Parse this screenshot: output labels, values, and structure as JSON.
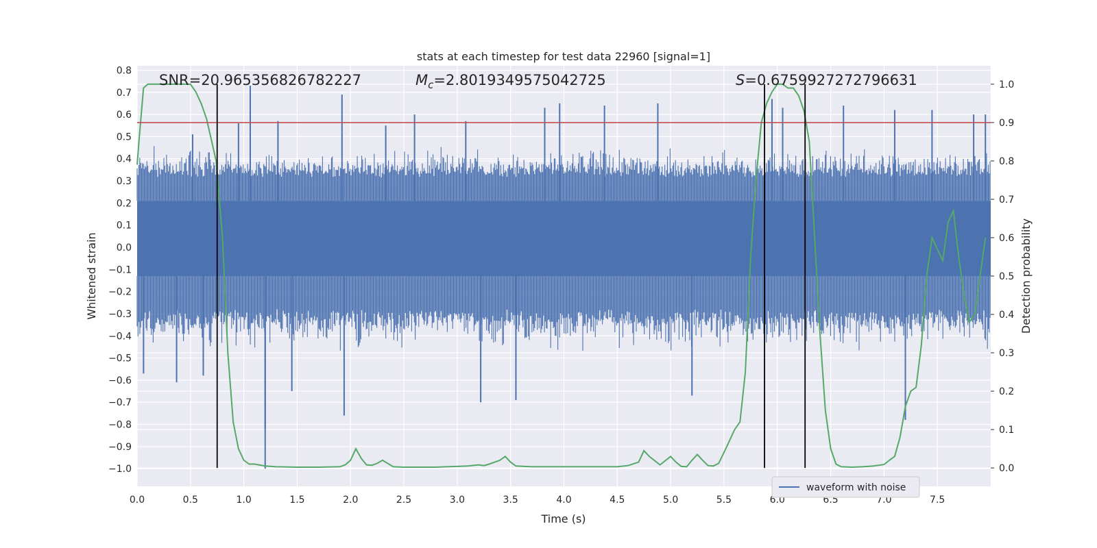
{
  "chart_data": {
    "type": "line",
    "title": "stats at each timestep for test data 22960 [signal=1]",
    "xlabel": "Time (s)",
    "ylabel": "Whitened strain",
    "y2label": "Detection probability",
    "xlim": [
      0.0,
      8.0
    ],
    "ylim": [
      -1.08,
      0.82
    ],
    "y2lim": [
      -0.048,
      1.048
    ],
    "xticks": [
      0.0,
      0.5,
      1.0,
      1.5,
      2.0,
      2.5,
      3.0,
      3.5,
      4.0,
      4.5,
      5.0,
      5.5,
      6.0,
      6.5,
      7.0,
      7.5
    ],
    "xtick_labels": [
      "0.0",
      "0.5",
      "1.0",
      "1.5",
      "2.0",
      "2.5",
      "3.0",
      "3.5",
      "4.0",
      "4.5",
      "5.0",
      "5.5",
      "6.0",
      "6.5",
      "7.0",
      "7.5"
    ],
    "yticks": [
      0.8,
      0.7,
      0.6,
      0.5,
      0.4,
      0.3,
      0.2,
      0.1,
      0.0,
      -0.1,
      -0.2,
      -0.3,
      -0.4,
      -0.5,
      -0.6,
      -0.7,
      -0.8,
      -0.9,
      -1.0
    ],
    "ytick_labels": [
      "0.8",
      "0.7",
      "0.6",
      "0.5",
      "0.4",
      "0.3",
      "0.2",
      "0.1",
      "0.0",
      "−0.1",
      "−0.2",
      "−0.3",
      "−0.4",
      "−0.5",
      "−0.6",
      "−0.7",
      "−0.8",
      "−0.9",
      "−1.0"
    ],
    "y2ticks": [
      1.0,
      0.9,
      0.8,
      0.7,
      0.6,
      0.5,
      0.4,
      0.3,
      0.2,
      0.1,
      0.0
    ],
    "y2tick_labels": [
      "1.0",
      "0.9",
      "0.8",
      "0.7",
      "0.6",
      "0.5",
      "0.4",
      "0.3",
      "0.2",
      "0.1",
      "0.0"
    ],
    "threshold": {
      "axis": "right",
      "value": 0.9,
      "color": "#c44e52"
    },
    "vertical_lines": [
      0.75,
      5.88,
      6.26
    ],
    "annotations": {
      "snr": "SNR=20.965356826782227",
      "mc_symbol": "M",
      "mc_sub": "c",
      "mc_value": "=2.8019349575042725",
      "s_symbol": "S",
      "s_value": "=0.6759927272796631"
    },
    "series": [
      {
        "name": "waveform with noise",
        "axis": "left",
        "color": "#4c72b0",
        "dense_band": [
          -0.13,
          0.21
        ],
        "upper_envelope_typical": 0.4,
        "lower_envelope_typical": -0.4,
        "spikes": [
          [
            0.06,
            -0.57
          ],
          [
            0.37,
            -0.61
          ],
          [
            0.52,
            0.51
          ],
          [
            0.62,
            -0.58
          ],
          [
            0.95,
            0.56
          ],
          [
            1.06,
            0.73
          ],
          [
            1.2,
            -1.0
          ],
          [
            1.2,
            -0.82
          ],
          [
            1.32,
            0.57
          ],
          [
            1.45,
            -0.65
          ],
          [
            1.92,
            0.69
          ],
          [
            1.94,
            -0.76
          ],
          [
            2.33,
            0.55
          ],
          [
            2.6,
            0.6
          ],
          [
            3.08,
            0.57
          ],
          [
            3.22,
            -0.7
          ],
          [
            3.55,
            -0.69
          ],
          [
            3.82,
            0.63
          ],
          [
            3.96,
            0.65
          ],
          [
            4.38,
            0.64
          ],
          [
            4.88,
            0.65
          ],
          [
            5.2,
            -0.67
          ],
          [
            5.95,
            0.67
          ],
          [
            6.05,
            0.63
          ],
          [
            6.62,
            0.64
          ],
          [
            7.1,
            0.62
          ],
          [
            7.2,
            -0.78
          ],
          [
            7.45,
            0.62
          ],
          [
            7.84,
            0.6
          ],
          [
            7.95,
            0.6
          ]
        ]
      },
      {
        "name": "Detection probability",
        "axis": "right",
        "color": "#55a868",
        "x": [
          0.0,
          0.02,
          0.06,
          0.1,
          0.2,
          0.3,
          0.4,
          0.5,
          0.55,
          0.6,
          0.65,
          0.7,
          0.74,
          0.8,
          0.85,
          0.9,
          0.95,
          1.0,
          1.05,
          1.1,
          1.2,
          1.3,
          1.5,
          1.7,
          1.9,
          1.95,
          2.0,
          2.05,
          2.1,
          2.15,
          2.2,
          2.25,
          2.3,
          2.4,
          2.5,
          2.6,
          2.8,
          2.9,
          3.0,
          3.1,
          3.2,
          3.25,
          3.3,
          3.4,
          3.45,
          3.5,
          3.55,
          3.7,
          4.0,
          4.2,
          4.5,
          4.6,
          4.7,
          4.75,
          4.8,
          4.9,
          5.0,
          5.05,
          5.1,
          5.15,
          5.2,
          5.25,
          5.3,
          5.35,
          5.4,
          5.45,
          5.5,
          5.55,
          5.6,
          5.65,
          5.7,
          5.75,
          5.8,
          5.85,
          5.9,
          5.95,
          6.0,
          6.05,
          6.1,
          6.15,
          6.2,
          6.25,
          6.3,
          6.35,
          6.4,
          6.45,
          6.5,
          6.55,
          6.6,
          6.7,
          6.8,
          6.9,
          7.0,
          7.05,
          7.1,
          7.15,
          7.2,
          7.25,
          7.3,
          7.35,
          7.4,
          7.45,
          7.5,
          7.55,
          7.6,
          7.65,
          7.7,
          7.75,
          7.8,
          7.85,
          7.9,
          7.95
        ],
        "values": [
          0.79,
          0.86,
          0.99,
          1.0,
          1.0,
          1.0,
          1.0,
          1.0,
          0.98,
          0.95,
          0.91,
          0.85,
          0.8,
          0.6,
          0.3,
          0.12,
          0.05,
          0.02,
          0.01,
          0.01,
          0.005,
          0.003,
          0.002,
          0.002,
          0.003,
          0.008,
          0.02,
          0.05,
          0.025,
          0.008,
          0.007,
          0.012,
          0.02,
          0.003,
          0.002,
          0.002,
          0.002,
          0.003,
          0.004,
          0.005,
          0.008,
          0.006,
          0.01,
          0.02,
          0.03,
          0.015,
          0.005,
          0.003,
          0.003,
          0.003,
          0.003,
          0.006,
          0.015,
          0.045,
          0.03,
          0.008,
          0.03,
          0.015,
          0.004,
          0.003,
          0.02,
          0.035,
          0.02,
          0.006,
          0.005,
          0.012,
          0.04,
          0.07,
          0.1,
          0.12,
          0.25,
          0.55,
          0.75,
          0.9,
          0.95,
          0.98,
          1.0,
          1.0,
          0.99,
          0.99,
          0.97,
          0.93,
          0.85,
          0.6,
          0.35,
          0.15,
          0.05,
          0.01,
          0.003,
          0.002,
          0.003,
          0.005,
          0.009,
          0.02,
          0.03,
          0.08,
          0.16,
          0.2,
          0.21,
          0.32,
          0.5,
          0.6,
          0.57,
          0.54,
          0.64,
          0.67,
          0.55,
          0.45,
          0.38,
          0.4,
          0.5,
          0.6
        ],
        "legend": false
      }
    ],
    "legend": {
      "position": "lower-right",
      "entries": [
        "waveform with noise"
      ]
    }
  }
}
